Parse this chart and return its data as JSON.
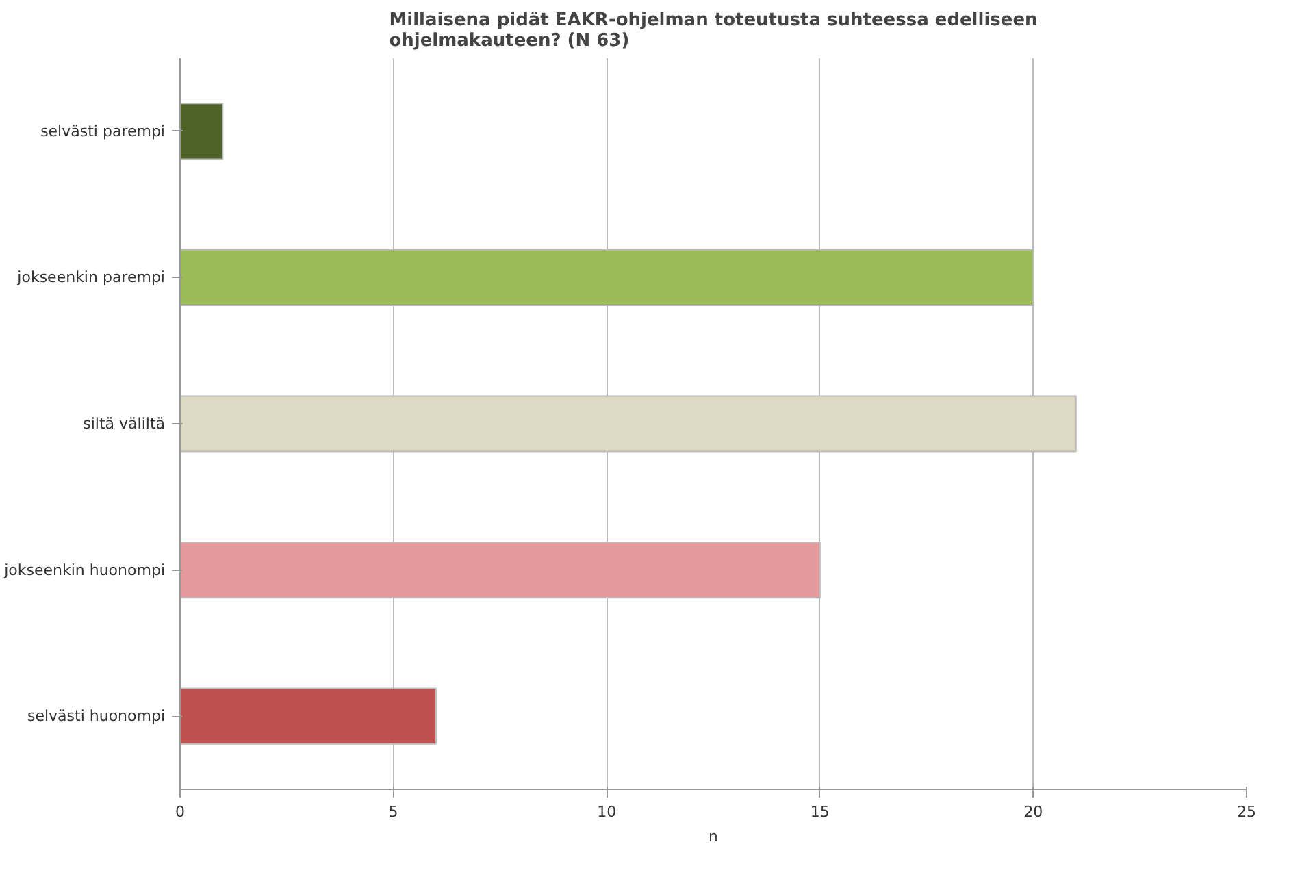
{
  "chart_data": {
    "type": "bar",
    "orientation": "horizontal",
    "title": "Millaisena pidät EAKR-ohjelman toteutusta suhteessa edelliseen\nohjelmakauteen? (N 63)",
    "xlabel": "n",
    "categories": [
      "selvästi parempi",
      "jokseenkin parempi",
      "siltä väliltä",
      "jokseenkin huonompi",
      "selvästi huonompi"
    ],
    "values": [
      1,
      20,
      21,
      15,
      6
    ],
    "colors": [
      "#4f6228",
      "#9bbb59",
      "#ddd9c3",
      "#e6999a",
      "#c0504d"
    ],
    "xlim": [
      0,
      25
    ],
    "xticks": [
      0,
      5,
      10,
      15,
      20,
      25
    ],
    "grid": "x"
  }
}
